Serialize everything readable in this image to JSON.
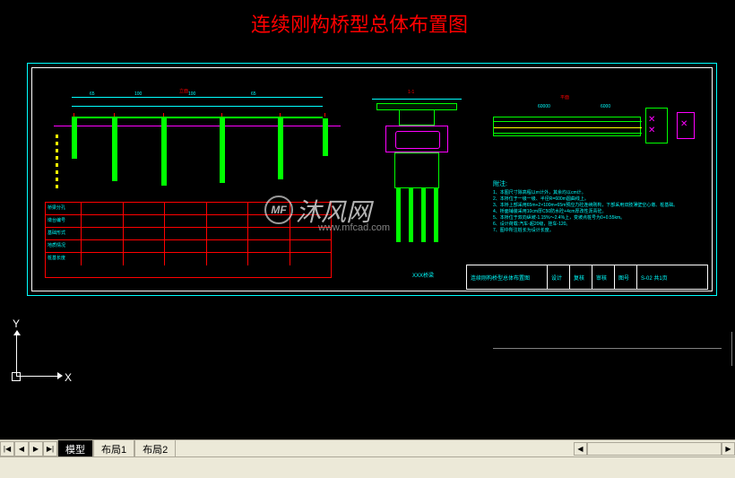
{
  "title": "连续刚构桥型总体布置图",
  "colors": {
    "title": "#ff0000",
    "cyan": "#00ffff",
    "green": "#00ff00",
    "magenta": "#ff00ff",
    "yellow": "#ffff00",
    "white": "#ffffff"
  },
  "elevation": {
    "label": "立面",
    "spans": [
      "65",
      "100",
      "100",
      "65"
    ],
    "pier_positions": [
      30,
      75,
      130,
      195,
      260,
      310
    ],
    "pier_heights": [
      45,
      70,
      75,
      72,
      68,
      42
    ]
  },
  "table": {
    "headers": [
      "桥梁分孔",
      "墩台编号",
      "基础形式",
      "地质情况",
      "桩基长度"
    ],
    "cols": 6
  },
  "section": {
    "label": "1-1"
  },
  "plan": {
    "label": "平面"
  },
  "notes": {
    "title": "附注:",
    "lines": [
      "1、本图尺寸除高程以m计外，其余均以cm计。",
      "2、本桥位于一级一级、半径R=600m圆曲线上。",
      "3、本桥上部采用65m+2×100m+65m预应力砼连续刚构，下部采用双肢薄壁空心墩、桩基础。",
      "4、桥面铺装采用10cm厚C50防水砼+4cm厚改性沥青砼。",
      "5、本桥位于双向纵坡-1.15%～2.4%上，变坡点桩号为0+0.55km。",
      "6、设计荷载:汽车-超20级，挂车-120。",
      "7、图中所注桩长为设计长度。"
    ]
  },
  "title_block": {
    "project": "XXX桥梁",
    "drawing": "连续刚构桥型总体布置图",
    "fields": [
      "设计",
      "复核",
      "审核",
      "图号"
    ],
    "sheet": "S-02 共1页"
  },
  "ucs": {
    "x": "X",
    "y": "Y"
  },
  "tabs": {
    "nav_first": "|◀",
    "nav_prev": "◀",
    "nav_next": "▶",
    "nav_last": "▶|",
    "items": [
      "模型",
      "布局1",
      "布局2"
    ],
    "active": 0
  },
  "watermark": {
    "logo": "MF",
    "text": "沐风网",
    "url": "www.mfcad.com"
  }
}
